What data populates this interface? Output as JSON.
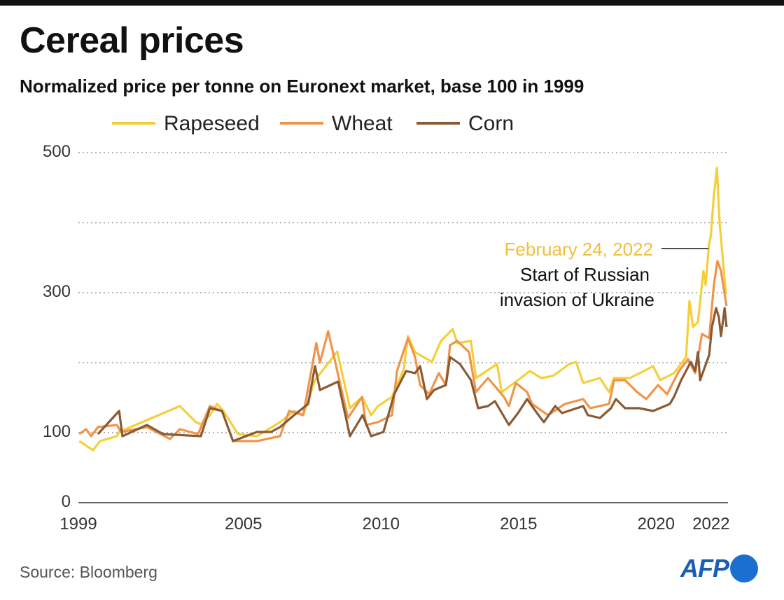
{
  "title": "Cereal prices",
  "subtitle": "Normalized price per tonne on Euronext market, base 100 in 1999",
  "source": "Source: Bloomberg",
  "logo": "AFP",
  "annotation": {
    "date": "February 24, 2022",
    "line1": "Start of Russian",
    "line2": "invasion of Ukraine",
    "date_color": "#efc03c"
  },
  "chart_data": {
    "type": "line",
    "title": "Cereal prices",
    "subtitle": "Normalized price per tonne on Euronext market, base 100 in 1999",
    "xlim": [
      1999,
      2022.6
    ],
    "ylim": [
      0,
      500
    ],
    "x_ticks": [
      1999,
      2005,
      2010,
      2015,
      2020,
      2022
    ],
    "x_tick_labels": [
      "1999",
      "2005",
      "2010",
      "2015",
      "2020",
      "2022"
    ],
    "y_ticks": [
      0,
      100,
      300,
      500
    ],
    "y_tick_labels": [
      "0",
      "100",
      "300",
      "500"
    ],
    "y_gridlines": [
      100,
      200,
      300,
      400,
      500
    ],
    "grid": "horizontal dotted",
    "legend_position": "top",
    "series": [
      {
        "name": "Rapeseed",
        "color": "#f5cf3a",
        "points": [
          [
            1999.03,
            88
          ],
          [
            1999.53,
            75
          ],
          [
            1999.79,
            88
          ],
          [
            2000.4,
            95
          ],
          [
            2000.48,
            101
          ],
          [
            2001.49,
            118
          ],
          [
            2002.69,
            138
          ],
          [
            2003.27,
            115
          ],
          [
            2003.45,
            112
          ],
          [
            2003.78,
            125
          ],
          [
            2004.04,
            141
          ],
          [
            2004.29,
            130
          ],
          [
            2004.8,
            98
          ],
          [
            2005.49,
            95
          ],
          [
            2006.33,
            115
          ],
          [
            2006.84,
            131
          ],
          [
            2007.17,
            125
          ],
          [
            2007.6,
            175
          ],
          [
            2008.41,
            216
          ],
          [
            2008.87,
            135
          ],
          [
            2009.31,
            151
          ],
          [
            2009.64,
            125
          ],
          [
            2009.89,
            138
          ],
          [
            2010.4,
            151
          ],
          [
            2010.83,
            191
          ],
          [
            2010.98,
            238
          ],
          [
            2011.24,
            215
          ],
          [
            2011.85,
            201
          ],
          [
            2012.18,
            231
          ],
          [
            2012.61,
            248
          ],
          [
            2012.77,
            228
          ],
          [
            2013.27,
            231
          ],
          [
            2013.45,
            178
          ],
          [
            2014.22,
            198
          ],
          [
            2014.39,
            158
          ],
          [
            2014.98,
            175
          ],
          [
            2015.41,
            188
          ],
          [
            2015.82,
            178
          ],
          [
            2016.25,
            181
          ],
          [
            2016.84,
            198
          ],
          [
            2017.09,
            201
          ],
          [
            2017.35,
            171
          ],
          [
            2017.96,
            178
          ],
          [
            2018.29,
            158
          ],
          [
            2018.47,
            178
          ],
          [
            2019.05,
            178
          ],
          [
            2019.89,
            195
          ],
          [
            2020.15,
            175
          ],
          [
            2020.65,
            185
          ],
          [
            2021.09,
            208
          ],
          [
            2021.21,
            288
          ],
          [
            2021.34,
            251
          ],
          [
            2021.52,
            258
          ],
          [
            2021.72,
            331
          ],
          [
            2021.8,
            311
          ],
          [
            2021.93,
            371
          ],
          [
            2021.98,
            378
          ],
          [
            2022.1,
            438
          ],
          [
            2022.21,
            478
          ],
          [
            2022.31,
            398
          ],
          [
            2022.54,
            298
          ]
        ]
      },
      {
        "name": "Wheat",
        "color": "#f0944a",
        "points": [
          [
            1999.03,
            98
          ],
          [
            1999.28,
            105
          ],
          [
            1999.46,
            95
          ],
          [
            1999.71,
            108
          ],
          [
            2000.4,
            111
          ],
          [
            2000.55,
            101
          ],
          [
            2001.49,
            108
          ],
          [
            2002.33,
            91
          ],
          [
            2002.69,
            105
          ],
          [
            2003.35,
            98
          ],
          [
            2003.78,
            138
          ],
          [
            2004.22,
            131
          ],
          [
            2004.62,
            88
          ],
          [
            2005.49,
            88
          ],
          [
            2006.33,
            95
          ],
          [
            2006.66,
            131
          ],
          [
            2007.17,
            125
          ],
          [
            2007.65,
            228
          ],
          [
            2007.78,
            200
          ],
          [
            2008.08,
            245
          ],
          [
            2008.8,
            121
          ],
          [
            2009.31,
            151
          ],
          [
            2009.46,
            111
          ],
          [
            2009.89,
            115
          ],
          [
            2010.4,
            125
          ],
          [
            2010.58,
            188
          ],
          [
            2010.98,
            235
          ],
          [
            2011.24,
            208
          ],
          [
            2011.42,
            168
          ],
          [
            2011.75,
            155
          ],
          [
            2012.1,
            185
          ],
          [
            2012.36,
            168
          ],
          [
            2012.51,
            225
          ],
          [
            2012.77,
            231
          ],
          [
            2013.2,
            215
          ],
          [
            2013.45,
            158
          ],
          [
            2013.89,
            178
          ],
          [
            2014.47,
            151
          ],
          [
            2014.65,
            138
          ],
          [
            2014.9,
            171
          ],
          [
            2015.31,
            158
          ],
          [
            2015.49,
            141
          ],
          [
            2016.07,
            125
          ],
          [
            2016.68,
            141
          ],
          [
            2017.35,
            148
          ],
          [
            2017.6,
            135
          ],
          [
            2018.29,
            141
          ],
          [
            2018.47,
            175
          ],
          [
            2018.87,
            175
          ],
          [
            2019.31,
            158
          ],
          [
            2019.64,
            148
          ],
          [
            2020.07,
            168
          ],
          [
            2020.4,
            155
          ],
          [
            2020.83,
            188
          ],
          [
            2021.16,
            205
          ],
          [
            2021.42,
            185
          ],
          [
            2021.67,
            241
          ],
          [
            2021.93,
            235
          ],
          [
            2022.1,
            311
          ],
          [
            2022.23,
            345
          ],
          [
            2022.36,
            331
          ],
          [
            2022.56,
            281
          ]
        ]
      },
      {
        "name": "Corn",
        "color": "#8a5a33",
        "points": [
          [
            1999.71,
            98
          ],
          [
            2000.48,
            131
          ],
          [
            2000.6,
            95
          ],
          [
            2001.49,
            111
          ],
          [
            2002.08,
            98
          ],
          [
            2003.45,
            95
          ],
          [
            2003.78,
            135
          ],
          [
            2004.22,
            131
          ],
          [
            2004.62,
            88
          ],
          [
            2005.49,
            101
          ],
          [
            2006.0,
            101
          ],
          [
            2006.33,
            108
          ],
          [
            2006.84,
            125
          ],
          [
            2007.35,
            141
          ],
          [
            2007.6,
            195
          ],
          [
            2007.78,
            161
          ],
          [
            2008.44,
            173
          ],
          [
            2008.87,
            95
          ],
          [
            2009.33,
            125
          ],
          [
            2009.64,
            95
          ],
          [
            2010.09,
            101
          ],
          [
            2010.48,
            155
          ],
          [
            2010.91,
            188
          ],
          [
            2011.24,
            185
          ],
          [
            2011.42,
            195
          ],
          [
            2011.67,
            148
          ],
          [
            2011.93,
            161
          ],
          [
            2012.36,
            168
          ],
          [
            2012.51,
            208
          ],
          [
            2012.87,
            198
          ],
          [
            2013.27,
            175
          ],
          [
            2013.53,
            135
          ],
          [
            2013.89,
            138
          ],
          [
            2014.14,
            145
          ],
          [
            2014.65,
            111
          ],
          [
            2014.98,
            128
          ],
          [
            2015.31,
            148
          ],
          [
            2015.67,
            128
          ],
          [
            2015.92,
            115
          ],
          [
            2016.33,
            138
          ],
          [
            2016.58,
            128
          ],
          [
            2017.35,
            138
          ],
          [
            2017.52,
            125
          ],
          [
            2017.96,
            121
          ],
          [
            2018.36,
            135
          ],
          [
            2018.54,
            148
          ],
          [
            2018.87,
            135
          ],
          [
            2019.38,
            135
          ],
          [
            2019.89,
            131
          ],
          [
            2020.5,
            141
          ],
          [
            2020.65,
            151
          ],
          [
            2020.91,
            175
          ],
          [
            2021.26,
            201
          ],
          [
            2021.42,
            188
          ],
          [
            2021.52,
            215
          ],
          [
            2021.6,
            175
          ],
          [
            2021.93,
            211
          ],
          [
            2022.03,
            251
          ],
          [
            2022.18,
            278
          ],
          [
            2022.28,
            265
          ],
          [
            2022.36,
            238
          ],
          [
            2022.49,
            278
          ],
          [
            2022.56,
            251
          ]
        ]
      }
    ]
  }
}
